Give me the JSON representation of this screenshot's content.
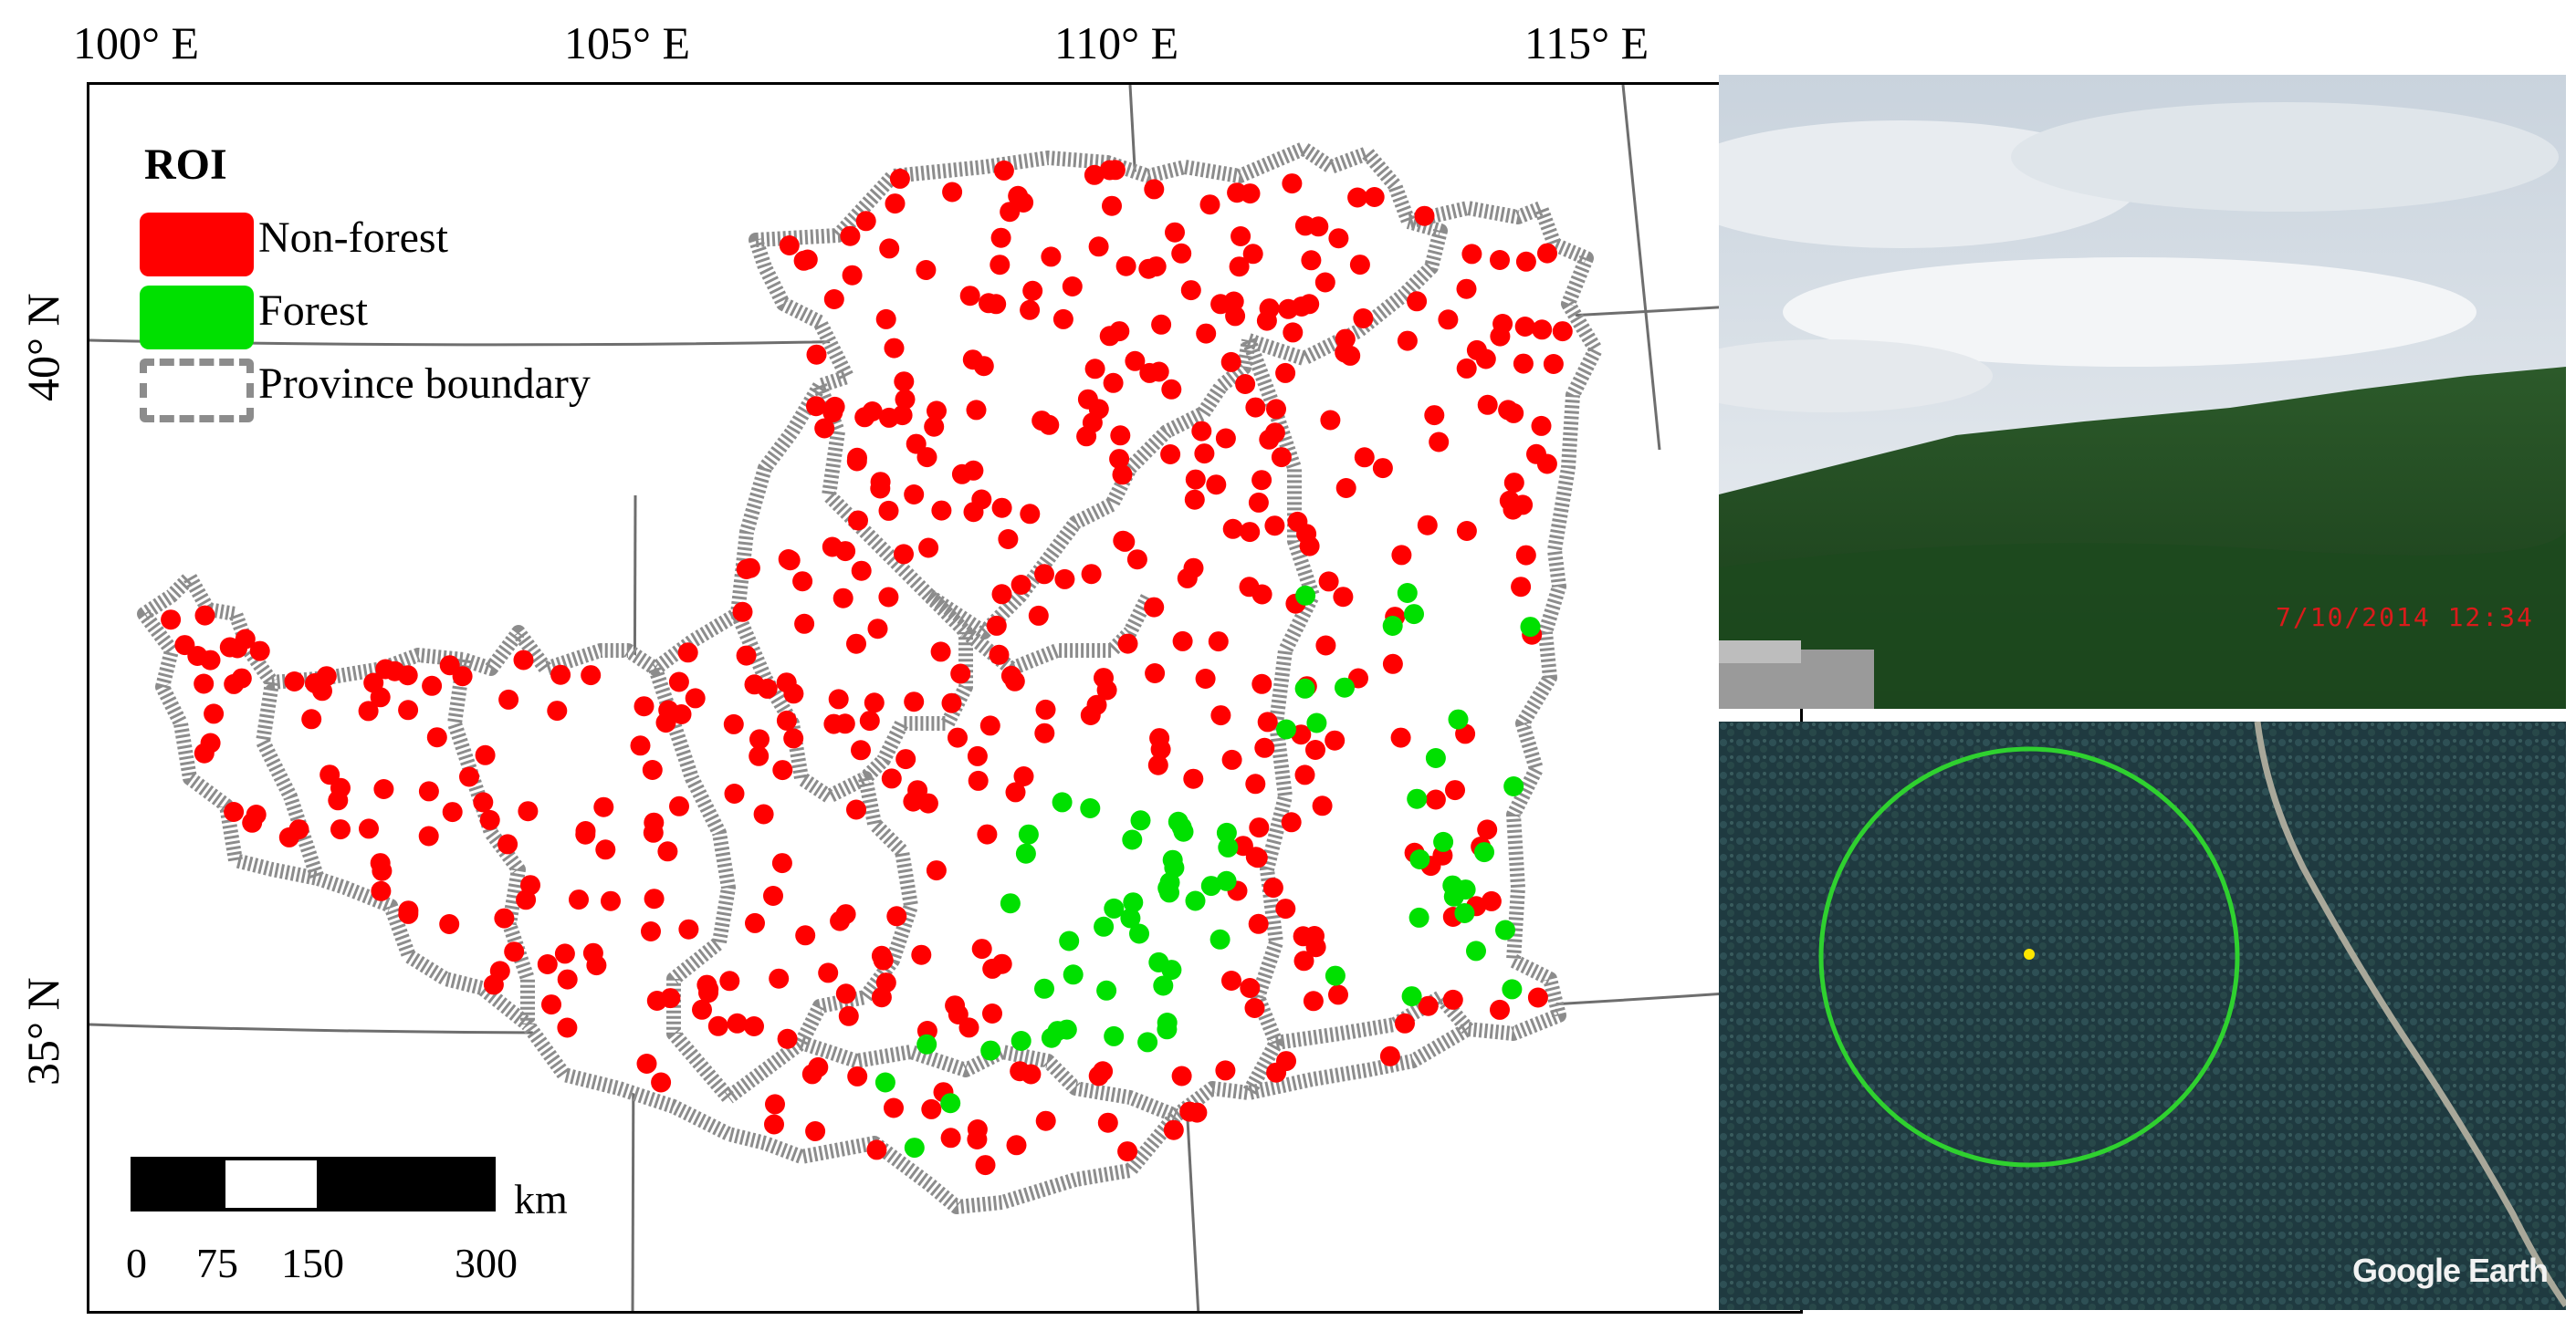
{
  "map": {
    "lon_labels": [
      "100° E",
      "105° E",
      "110° E",
      "115° E"
    ],
    "lat_labels": [
      "40° N",
      "35° N"
    ],
    "legend": {
      "title": "ROI",
      "items": [
        {
          "label": "Non-forest",
          "color": "#ff0000"
        },
        {
          "label": "Forest",
          "color": "#00e000"
        },
        {
          "label": "Province boundary",
          "color": "#8c8c8c"
        }
      ]
    },
    "scale": {
      "unit": "km",
      "ticks": [
        "0",
        "75",
        "150",
        "300"
      ]
    }
  },
  "photo_top": {
    "datestamp": "7/10/2014   12:34"
  },
  "photo_bottom": {
    "attribution": "Google Earth"
  }
}
